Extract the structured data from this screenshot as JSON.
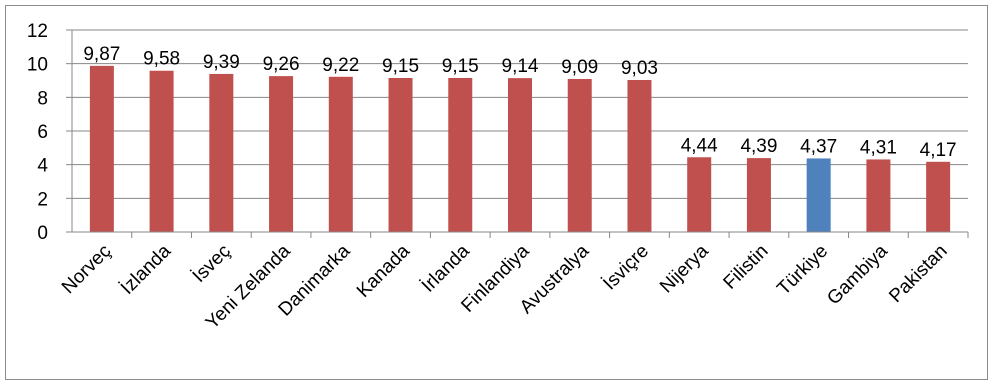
{
  "chart_data": {
    "type": "bar",
    "categories": [
      "Norveç",
      "İzlanda",
      "İsveç",
      "Yeni Zelanda",
      "Danimarka",
      "Kanada",
      "İrlanda",
      "Finlandiya",
      "Avustralya",
      "İsviçre",
      "Nijerya",
      "Filistin",
      "Türkiye",
      "Gambiya",
      "Pakistan"
    ],
    "values": [
      9.87,
      9.58,
      9.39,
      9.26,
      9.22,
      9.15,
      9.15,
      9.14,
      9.09,
      9.03,
      4.44,
      4.39,
      4.37,
      4.31,
      4.17
    ],
    "data_labels": [
      "9,87",
      "9,58",
      "9,39",
      "9,26",
      "9,22",
      "9,15",
      "9,15",
      "9,14",
      "9,09",
      "9,03",
      "4,44",
      "4,39",
      "4,37",
      "4,31",
      "4,17"
    ],
    "highlight_category": "Türkiye",
    "y_ticks": [
      "0",
      "2",
      "4",
      "6",
      "8",
      "10",
      "12"
    ],
    "ylim": [
      0,
      12
    ],
    "grid": true,
    "legend": false,
    "colors": {
      "bar": "#c0504d",
      "highlight": "#4f81bd",
      "grid": "#878787",
      "axis": "#878787"
    }
  }
}
